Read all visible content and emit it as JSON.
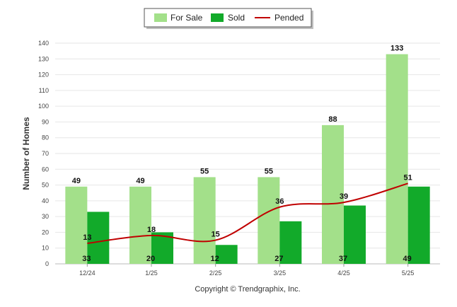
{
  "chart_data": {
    "type": "bar",
    "categories": [
      "12/24",
      "1/25",
      "2/25",
      "3/25",
      "4/25",
      "5/25"
    ],
    "series": [
      {
        "name": "For Sale",
        "kind": "bar",
        "color": "#a3e08a",
        "values": [
          49,
          49,
          55,
          55,
          88,
          133
        ]
      },
      {
        "name": "Sold",
        "kind": "bar",
        "color": "#12aa2a",
        "values": [
          33,
          20,
          12,
          27,
          37,
          49
        ]
      },
      {
        "name": "Pended",
        "kind": "line",
        "color": "#c00000",
        "values": [
          13,
          18,
          15,
          36,
          39,
          51
        ]
      }
    ],
    "xlabel": "",
    "ylabel": "Number of Homes",
    "ylim": [
      0,
      140
    ],
    "yticks": [
      0,
      10,
      20,
      30,
      40,
      50,
      60,
      70,
      80,
      90,
      100,
      110,
      120,
      130,
      140
    ],
    "grid": true,
    "legend_position": "top-center"
  },
  "copyright": "Copyright © Trendgraphix, Inc."
}
